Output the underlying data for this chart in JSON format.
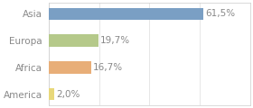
{
  "categories": [
    "America",
    "Africa",
    "Europa",
    "Asia"
  ],
  "values": [
    2.0,
    16.7,
    19.7,
    61.5
  ],
  "labels": [
    "2,0%",
    "16,7%",
    "19,7%",
    "61,5%"
  ],
  "bar_colors": [
    "#e8d87a",
    "#e8ae78",
    "#b5c98a",
    "#7a9fc4"
  ],
  "background_color": "#ffffff",
  "plot_bg_color": "#ffffff",
  "xlim": [
    0,
    80
  ],
  "bar_height": 0.45,
  "label_fontsize": 7.5,
  "tick_fontsize": 7.5,
  "tick_color": "#888888",
  "label_color": "#888888",
  "grid_color": "#dddddd",
  "grid_positions": [
    0,
    20,
    40,
    60,
    80
  ],
  "border_color": "#cccccc"
}
